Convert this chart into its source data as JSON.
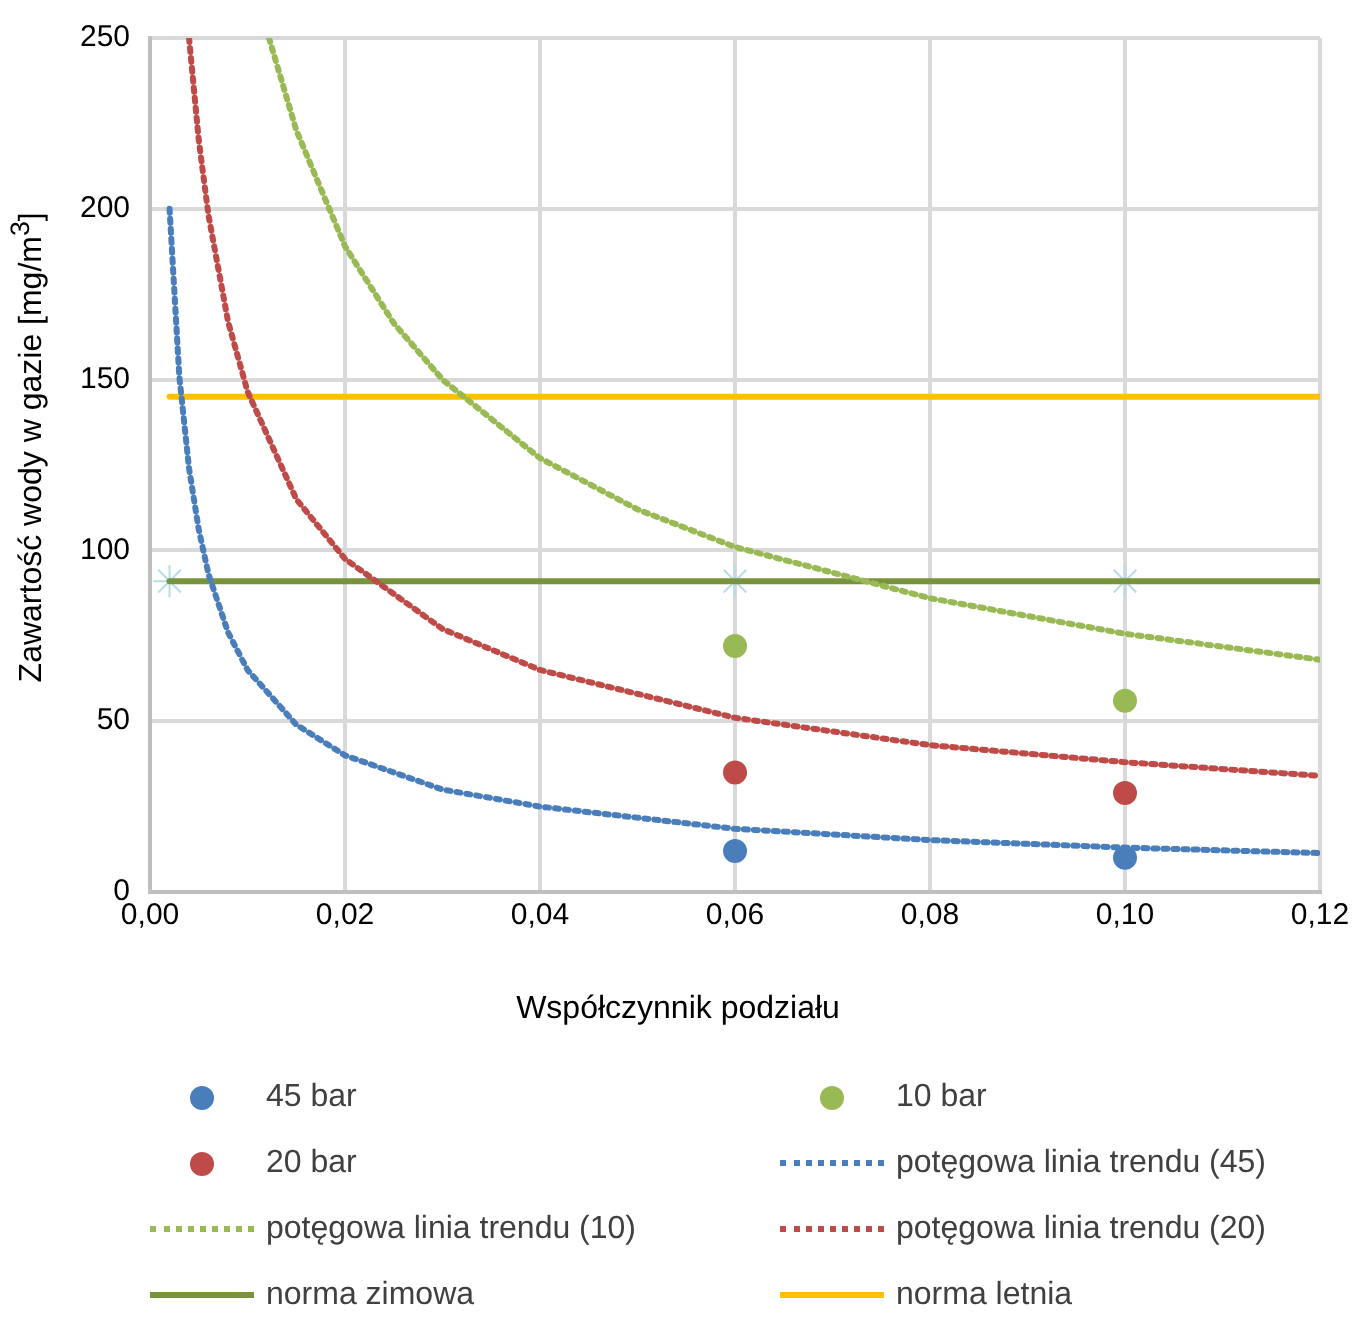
{
  "chart_data": {
    "type": "scatter",
    "xlabel": "Współczynnik podziału",
    "ylabel": "Zawartość wody w gazie [mg/m$^{3}$]",
    "xlim": [
      0,
      0.12
    ],
    "ylim": [
      0,
      250
    ],
    "xticks": [
      {
        "value": 0,
        "label": "0,00"
      },
      {
        "value": 0.02,
        "label": "0,02"
      },
      {
        "value": 0.04,
        "label": "0,04"
      },
      {
        "value": 0.06,
        "label": "0,06"
      },
      {
        "value": 0.08,
        "label": "0,08"
      },
      {
        "value": 0.1,
        "label": "0,10"
      },
      {
        "value": 0.12,
        "label": "0,12"
      }
    ],
    "yticks": [
      0,
      50,
      100,
      150,
      200,
      250
    ],
    "grid": true,
    "legend": "bottom",
    "marker": "circle",
    "series": [
      {
        "name": "45 bar",
        "type": "scatter",
        "color": "#4a7ebb",
        "x": [
          0.06,
          0.1
        ],
        "values": [
          12,
          10
        ]
      },
      {
        "name": "10 bar",
        "type": "scatter",
        "color": "#98b954",
        "x": [
          0.06,
          0.1
        ],
        "values": [
          72,
          56
        ]
      },
      {
        "name": "20 bar",
        "type": "scatter",
        "color": "#be4b48",
        "x": [
          0.06,
          0.1
        ],
        "values": [
          35,
          29
        ]
      },
      {
        "name": "potęgowa linia trendu (45)",
        "type": "line",
        "line_style": "dotted",
        "marker": "none",
        "color": "#4a7ebb",
        "x": [
          0.002,
          0.003,
          0.004,
          0.005,
          0.006,
          0.008,
          0.01,
          0.015,
          0.02,
          0.03,
          0.04,
          0.06,
          0.08,
          0.1,
          0.12
        ],
        "values": [
          200,
          151,
          124,
          106,
          93,
          76,
          65,
          49,
          40,
          30,
          25,
          18.5,
          15.2,
          13,
          11.4
        ]
      },
      {
        "name": "potęgowa linia trendu (10)",
        "type": "line",
        "line_style": "dotted",
        "marker": "none",
        "color": "#98b954",
        "x": [
          0.0122,
          0.015,
          0.02,
          0.025,
          0.03,
          0.04,
          0.05,
          0.06,
          0.08,
          0.1,
          0.12
        ],
        "values": [
          250,
          223,
          189,
          166.5,
          150,
          127,
          112,
          101,
          86,
          75.6,
          68
        ]
      },
      {
        "name": "potęgowa linia trendu (20)",
        "type": "line",
        "line_style": "dotted",
        "marker": "none",
        "color": "#be4b48",
        "x": [
          0.004,
          0.005,
          0.006,
          0.008,
          0.01,
          0.015,
          0.02,
          0.03,
          0.04,
          0.06,
          0.08,
          0.1,
          0.12
        ],
        "values": [
          250,
          220,
          198,
          167,
          146.5,
          115,
          97.5,
          77,
          65,
          51,
          43,
          38,
          34
        ]
      },
      {
        "name": "norma zimowa",
        "type": "line",
        "line_style": "solid",
        "marker": "none",
        "color": "#77933c",
        "x": [
          0.002,
          0.12
        ],
        "values": [
          91,
          91
        ]
      },
      {
        "name": "norma letnia",
        "type": "line",
        "line_style": "solid",
        "marker": "none",
        "color": "#ffc000",
        "x": [
          0.002,
          0.12
        ],
        "values": [
          145,
          145
        ]
      },
      {
        "type": "scatter",
        "marker": "cross",
        "color": "#b7dde8",
        "x": [
          0.002,
          0.06,
          0.1
        ],
        "values": [
          91,
          91,
          91
        ]
      }
    ]
  }
}
